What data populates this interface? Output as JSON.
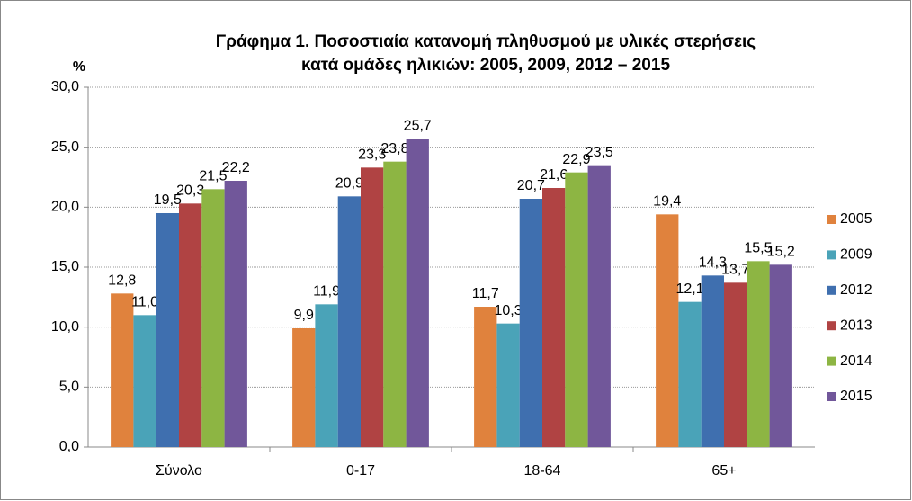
{
  "chart_data": {
    "type": "bar",
    "title": [
      "Γράφημα 1. Ποσοστιαία κατανομή πληθυσμού με υλικές στερήσεις",
      "κατά ομάδες ηλικιών: 2005, 2009, 2012 – 2015"
    ],
    "y_label": "%",
    "categories": [
      "Σύνολο",
      "0-17",
      "18-64",
      "65+"
    ],
    "series": [
      {
        "name": "2005",
        "color": "#e0823d",
        "values": [
          12.8,
          9.9,
          11.7,
          19.4
        ],
        "value_labels": [
          "12,8",
          "9,9",
          "11,7",
          "19,4"
        ]
      },
      {
        "name": "2009",
        "color": "#4aa3b8",
        "values": [
          11.0,
          11.9,
          10.3,
          12.1
        ],
        "value_labels": [
          "11,0",
          "11,9",
          "10,3",
          "12,1"
        ]
      },
      {
        "name": "2012",
        "color": "#3f6faf",
        "values": [
          19.5,
          20.9,
          20.7,
          14.3
        ],
        "value_labels": [
          "19,5",
          "20,9",
          "20,7",
          "14,3"
        ]
      },
      {
        "name": "2013",
        "color": "#b04343",
        "values": [
          20.3,
          23.3,
          21.6,
          13.7
        ],
        "value_labels": [
          "20,3",
          "23,3",
          "21,6",
          "13,7"
        ]
      },
      {
        "name": "2014",
        "color": "#8db543",
        "values": [
          21.5,
          23.8,
          22.9,
          15.5
        ],
        "value_labels": [
          "21,5",
          "23,8",
          "22,9",
          "15,5"
        ]
      },
      {
        "name": "2015",
        "color": "#71579a",
        "values": [
          22.2,
          25.7,
          23.5,
          15.2
        ],
        "value_labels": [
          "22,2",
          "25,7",
          "23,5",
          "15,2"
        ]
      }
    ],
    "ylim": [
      0,
      30
    ],
    "yticks": [
      {
        "value": 0,
        "label": "0,0"
      },
      {
        "value": 5,
        "label": "5,0"
      },
      {
        "value": 10,
        "label": "10,0"
      },
      {
        "value": 15,
        "label": "15,0"
      },
      {
        "value": 20,
        "label": "20,0"
      },
      {
        "value": 25,
        "label": "25,0"
      },
      {
        "value": 30,
        "label": "30,0"
      }
    ],
    "grid": true,
    "legend": "right"
  }
}
